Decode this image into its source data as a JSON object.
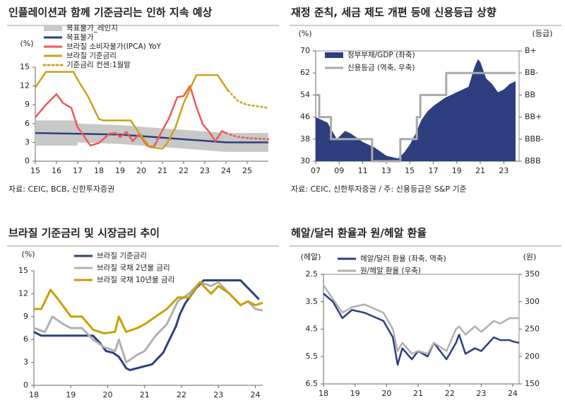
{
  "chart_data": [
    {
      "type": "line",
      "title": "인플레이션과 함께 기준금리는 인하 지속 예상",
      "source": "자료: CEIC, BCB, 신한투자증권",
      "ylabel": "(%)",
      "xlim": [
        2015,
        2026
      ],
      "ylim": [
        0,
        15
      ],
      "yticks": [
        0,
        3,
        6,
        9,
        12,
        15
      ],
      "xticks": [
        {
          "value": 2015,
          "label": "15"
        },
        {
          "value": 2016,
          "label": "16"
        },
        {
          "value": 2017,
          "label": "17"
        },
        {
          "value": 2018,
          "label": "18"
        },
        {
          "value": 2019,
          "label": "19"
        },
        {
          "value": 2020,
          "label": "20"
        },
        {
          "value": 2021,
          "label": "21"
        },
        {
          "value": 2022,
          "label": "22"
        },
        {
          "value": 2023,
          "label": "23"
        },
        {
          "value": 2024,
          "label": "24"
        },
        {
          "value": 2025,
          "label": "25"
        }
      ],
      "series": [
        {
          "name": "목표물가_레인지",
          "type": "band",
          "color": "#c8c8c8",
          "x": [
            2015,
            2017,
            2017,
            2019,
            2020,
            2021,
            2022,
            2023,
            2024,
            2026
          ],
          "low": [
            2.5,
            2.5,
            3,
            2.75,
            2.5,
            2.25,
            2,
            1.75,
            1.5,
            1.5
          ],
          "high": [
            6.5,
            6.5,
            6,
            5.75,
            5.5,
            5.25,
            5,
            4.75,
            4.5,
            4.5
          ]
        },
        {
          "name": "목표물가",
          "color": "#2e3f7f",
          "x": [
            2015,
            2019,
            2020,
            2021,
            2022,
            2023,
            2024,
            2026
          ],
          "values": [
            4.5,
            4.25,
            4,
            3.75,
            3.5,
            3.25,
            3,
            3
          ]
        },
        {
          "name": "브라질 소비자물가(IPCA) YoY",
          "color": "#f0585a",
          "x": [
            2015,
            2015.5,
            2016,
            2016.3,
            2016.7,
            2017,
            2017.3,
            2017.6,
            2018,
            2018.5,
            2018.8,
            2019,
            2019.3,
            2019.6,
            2019.9,
            2020.3,
            2020.6,
            2020.9,
            2021.3,
            2021.7,
            2022,
            2022.3,
            2022.6,
            2022.9,
            2023.2,
            2023.5,
            2023.8,
            2024
          ],
          "values": [
            7,
            9,
            10.7,
            9.3,
            8.5,
            5.4,
            4,
            2.5,
            2.9,
            4.4,
            4.5,
            3.8,
            4.7,
            3.2,
            4.3,
            2.4,
            2.3,
            4.3,
            6.8,
            10.2,
            10.4,
            12,
            8.7,
            5.9,
            4.7,
            3.2,
            4.8,
            4.5
          ]
        },
        {
          "color": "#f0585a",
          "dotted": true,
          "x": [
            2024,
            2024.5,
            2025,
            2026
          ],
          "values": [
            4.5,
            3.9,
            3.7,
            3.5
          ]
        },
        {
          "name": "브라질 기준금리",
          "color": "#c9a21a",
          "x": [
            2015,
            2015.5,
            2016.8,
            2017,
            2017.5,
            2018,
            2018.2,
            2019.5,
            2019.9,
            2020.4,
            2021,
            2021.2,
            2021.6,
            2022,
            2022.6,
            2023.6,
            2023.9,
            2024.1
          ],
          "values": [
            11.75,
            14.25,
            14.25,
            13,
            10.25,
            6.75,
            6.5,
            6.5,
            4.5,
            2.25,
            2,
            2.75,
            5.25,
            9.25,
            13.75,
            13.75,
            12.25,
            11.25
          ]
        },
        {
          "name": "기준금리 컨센:1월말",
          "color": "#c9a21a",
          "dotted": true,
          "x": [
            2024.1,
            2024.6,
            2025,
            2025.5,
            2026
          ],
          "values": [
            11.25,
            9.5,
            9,
            8.75,
            8.5
          ]
        }
      ]
    },
    {
      "type": "line",
      "title": "재정 준칙, 세금 제도 개편 등에 신용등급 상향",
      "source": "자료: CEIC, 신한투자증권 / 주: 신용등급은 S&P 기준",
      "ylabel": "(%)",
      "y2label": "(등급)",
      "xlim": [
        2007,
        2024.3
      ],
      "ylim": [
        30,
        70
      ],
      "yticks": [
        30,
        38,
        46,
        54,
        62,
        70
      ],
      "y2lim": [
        0,
        5
      ],
      "y2ticks": [
        {
          "value": 5,
          "label": "B+"
        },
        {
          "value": 4,
          "label": "BB-"
        },
        {
          "value": 3,
          "label": "BB"
        },
        {
          "value": 2,
          "label": "BB+"
        },
        {
          "value": 1,
          "label": "BBB-"
        },
        {
          "value": 0,
          "label": "BBB"
        }
      ],
      "xticks": [
        {
          "value": 2007,
          "label": "07"
        },
        {
          "value": 2009,
          "label": "09"
        },
        {
          "value": 2011,
          "label": "11"
        },
        {
          "value": 2013,
          "label": "13"
        },
        {
          "value": 2015,
          "label": "15"
        },
        {
          "value": 2017,
          "label": "17"
        },
        {
          "value": 2019,
          "label": "19"
        },
        {
          "value": 2021,
          "label": "21"
        },
        {
          "value": 2023,
          "label": "23"
        }
      ],
      "series": [
        {
          "name": "정부부채/GDP (좌축)",
          "type": "area",
          "color": "#2e3f7f",
          "x": [
            2007,
            2007.5,
            2008,
            2008.8,
            2009.5,
            2010,
            2011,
            2012,
            2013,
            2014,
            2014.5,
            2015,
            2015.5,
            2016,
            2016.5,
            2017,
            2018,
            2019,
            2020,
            2020.5,
            2020.8,
            2021,
            2021.5,
            2022,
            2022.5,
            2023,
            2023.5,
            2024
          ],
          "values": [
            46,
            45,
            44,
            38,
            41,
            40,
            37,
            35,
            32,
            31,
            33,
            36,
            40,
            45,
            48,
            50,
            53,
            55,
            57,
            64,
            67,
            66,
            60,
            58,
            55,
            56,
            58,
            59
          ]
        },
        {
          "name": "신용등급 (역축, 우축)",
          "axis": "y2",
          "color": "#aaaaaa",
          "width": 3,
          "x": [
            2007,
            2007.3,
            2007.3,
            2008.3,
            2008.3,
            2011.8,
            2011.8,
            2014.2,
            2014.2,
            2015.6,
            2015.6,
            2015.9,
            2015.9,
            2018.1,
            2018.1,
            2024
          ],
          "values": [
            3,
            3,
            2,
            2,
            1,
            1,
            0,
            0,
            1,
            1,
            2,
            2,
            3,
            3,
            4,
            4
          ]
        }
      ]
    },
    {
      "type": "line",
      "title": "브라질 기준금리 및 시장금리 추이",
      "ylabel": "(%)",
      "xlim": [
        2018,
        2024.2
      ],
      "ylim": [
        0,
        15
      ],
      "yticks": [
        0,
        3,
        6,
        9,
        12,
        15
      ],
      "xticks": [
        {
          "value": 2018,
          "label": "18"
        },
        {
          "value": 2019,
          "label": "19"
        },
        {
          "value": 2020,
          "label": "20"
        },
        {
          "value": 2021,
          "label": "21"
        },
        {
          "value": 2022,
          "label": "22"
        },
        {
          "value": 2023,
          "label": "23"
        },
        {
          "value": 2024,
          "label": "24"
        }
      ],
      "series": [
        {
          "name": "브라질 기준금리",
          "color": "#2e3f7f",
          "width": 3,
          "x": [
            2018,
            2018.2,
            2019.6,
            2019.7,
            2019.8,
            2019.95,
            2020.15,
            2020.3,
            2020.4,
            2020.5,
            2020.6,
            2021.2,
            2021.35,
            2021.5,
            2021.6,
            2021.7,
            2021.85,
            2021.95,
            2022.1,
            2022.25,
            2022.4,
            2022.5,
            2022.6,
            2023.6,
            2023.7,
            2023.8,
            2023.9,
            2024,
            2024.1
          ],
          "values": [
            7,
            6.5,
            6.5,
            6,
            5.5,
            4.5,
            4.25,
            3.75,
            3,
            2.25,
            2,
            2.75,
            3.5,
            4.25,
            5.25,
            6.25,
            7.75,
            9.25,
            10.75,
            11.75,
            12.75,
            13.25,
            13.75,
            13.75,
            13.25,
            12.75,
            12.25,
            11.75,
            11.25
          ]
        },
        {
          "name": "브라질 국채 2년물 금리",
          "color": "#b0b0b0",
          "width": 3,
          "x": [
            2018,
            2018.3,
            2018.5,
            2018.8,
            2019,
            2019.3,
            2019.6,
            2019.9,
            2020.2,
            2020.3,
            2020.5,
            2020.8,
            2021,
            2021.3,
            2021.6,
            2021.9,
            2022.2,
            2022.5,
            2022.8,
            2023,
            2023.3,
            2023.6,
            2023.8,
            2024,
            2024.2
          ],
          "values": [
            7.5,
            7,
            9,
            8,
            7.5,
            7.5,
            6,
            5,
            4.5,
            6,
            3,
            4,
            4.5,
            6.5,
            8,
            11,
            12,
            13.5,
            13,
            13.5,
            12,
            10.5,
            11,
            10,
            9.8
          ]
        },
        {
          "name": "브라질 국채 10년물 금리",
          "color": "#c8a000",
          "width": 3,
          "x": [
            2018,
            2018.2,
            2018.45,
            2018.7,
            2019,
            2019.3,
            2019.6,
            2019.9,
            2020.2,
            2020.3,
            2020.5,
            2020.8,
            2021,
            2021.3,
            2021.6,
            2021.9,
            2022.2,
            2022.5,
            2022.8,
            2023,
            2023.3,
            2023.6,
            2023.8,
            2024,
            2024.2
          ],
          "values": [
            10,
            10,
            12.5,
            11,
            9,
            9,
            7.3,
            6.8,
            7,
            9,
            7,
            7.5,
            8,
            9,
            10,
            11.5,
            11.5,
            13.5,
            12,
            13,
            12,
            10.5,
            11,
            10.5,
            10.8
          ]
        }
      ]
    },
    {
      "type": "line",
      "title": "헤알/달러 환율과 원/헤알 환율",
      "ylabel": "(헤알)",
      "y2label": "(원)",
      "xlim": [
        2018,
        2024.2
      ],
      "ylim": [
        6.5,
        2.5
      ],
      "yticks": [
        2.5,
        3.5,
        4.5,
        5.5,
        6.5
      ],
      "y2lim": [
        150,
        350
      ],
      "y2ticks": [
        150,
        200,
        250,
        300,
        350
      ],
      "xticks": [
        {
          "value": 2018,
          "label": "18"
        },
        {
          "value": 2019,
          "label": "19"
        },
        {
          "value": 2020,
          "label": "20"
        },
        {
          "value": 2021,
          "label": "21"
        },
        {
          "value": 2022,
          "label": "22"
        },
        {
          "value": 2023,
          "label": "23"
        },
        {
          "value": 2024,
          "label": "24"
        }
      ],
      "series": [
        {
          "name": "헤알/달러 환율 (좌축, 역축)",
          "color": "#2e3f7f",
          "width": 2.5,
          "x": [
            2018,
            2018.3,
            2018.6,
            2018.9,
            2019.3,
            2019.7,
            2019.9,
            2020.2,
            2020.35,
            2020.5,
            2020.8,
            2021,
            2021.3,
            2021.5,
            2021.9,
            2022.2,
            2022.3,
            2022.5,
            2022.8,
            2023,
            2023.4,
            2023.6,
            2023.9,
            2024,
            2024.2
          ],
          "values": [
            3.2,
            3.5,
            4.1,
            3.8,
            3.9,
            4.1,
            4.2,
            4.8,
            5.8,
            5.2,
            5.6,
            5.3,
            5.5,
            5,
            5.6,
            5,
            4.7,
            5.4,
            5.2,
            5.3,
            4.8,
            4.9,
            4.9,
            4.95,
            5
          ]
        },
        {
          "name": "원/헤알 환율 (우축)",
          "axis": "y2",
          "color": "#b0b0b0",
          "width": 2.5,
          "x": [
            2018,
            2018.3,
            2018.6,
            2018.9,
            2019.3,
            2019.7,
            2019.9,
            2020.2,
            2020.35,
            2020.5,
            2020.8,
            2021,
            2021.3,
            2021.5,
            2021.9,
            2022.2,
            2022.3,
            2022.5,
            2022.8,
            2023,
            2023.4,
            2023.6,
            2023.9,
            2024,
            2024.2
          ],
          "values": [
            330,
            305,
            280,
            290,
            295,
            285,
            280,
            250,
            210,
            225,
            205,
            210,
            205,
            225,
            210,
            250,
            255,
            240,
            255,
            245,
            265,
            260,
            270,
            270,
            270
          ]
        }
      ]
    }
  ]
}
